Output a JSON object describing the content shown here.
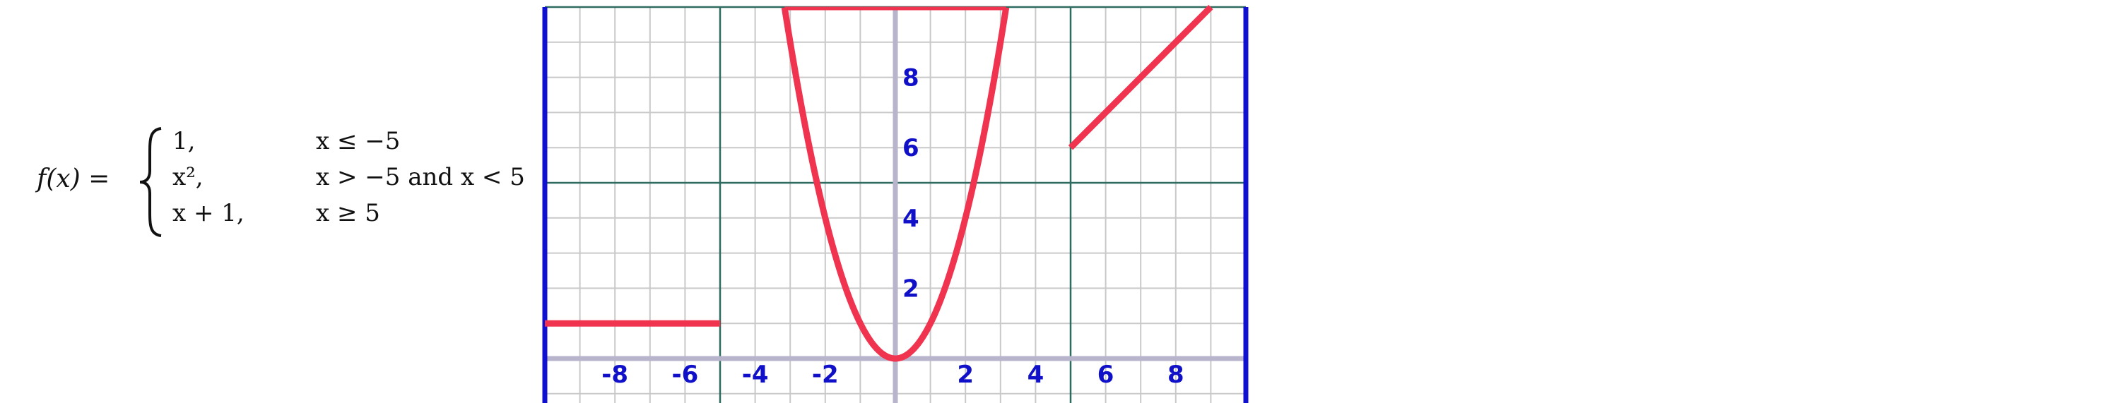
{
  "formula": {
    "lhs": "f(x) =",
    "cases": [
      {
        "expr": "1,",
        "cond": "x ≤ −5"
      },
      {
        "expr": "x²,",
        "cond": "x > −5 and x < 5"
      },
      {
        "expr": "x + 1,",
        "cond": "x ≥ 5"
      }
    ]
  },
  "chart_data": {
    "type": "line",
    "title": "",
    "xlabel": "",
    "ylabel": "",
    "xlim": [
      -10,
      10
    ],
    "ylim": [
      0,
      10
    ],
    "grid": true,
    "x_tick_labels": [
      "-8",
      "-6",
      "-4",
      "-2",
      "2",
      "4",
      "6",
      "8"
    ],
    "x_tick_values": [
      -8,
      -6,
      -4,
      -2,
      2,
      4,
      6,
      8
    ],
    "y_tick_labels": [
      "2",
      "4",
      "6",
      "8"
    ],
    "y_tick_values": [
      2,
      4,
      6,
      8
    ],
    "series": [
      {
        "function": "constant",
        "value": 1,
        "domain": [
          -10,
          -5
        ],
        "points": [
          [
            -10,
            1
          ],
          [
            -5,
            1
          ]
        ]
      },
      {
        "function": "x^2",
        "domain": [
          -3.16,
          3.16
        ],
        "points": [
          [
            -3.16,
            10
          ],
          [
            -3,
            9
          ],
          [
            -2,
            4
          ],
          [
            -1,
            1
          ],
          [
            0,
            0
          ],
          [
            1,
            1
          ],
          [
            2,
            4
          ],
          [
            3,
            9
          ],
          [
            3.16,
            10
          ]
        ]
      },
      {
        "function": "x+1",
        "domain": [
          5,
          9
        ],
        "points": [
          [
            5,
            6
          ],
          [
            9,
            10
          ]
        ]
      }
    ],
    "colors": {
      "curve": "#f0334f",
      "axes": "#b8b4cc",
      "grid_minor": "#c9c9c9",
      "grid_major": "#2f6b60",
      "frame": "#1010d0",
      "labels": "#1010c8"
    }
  }
}
